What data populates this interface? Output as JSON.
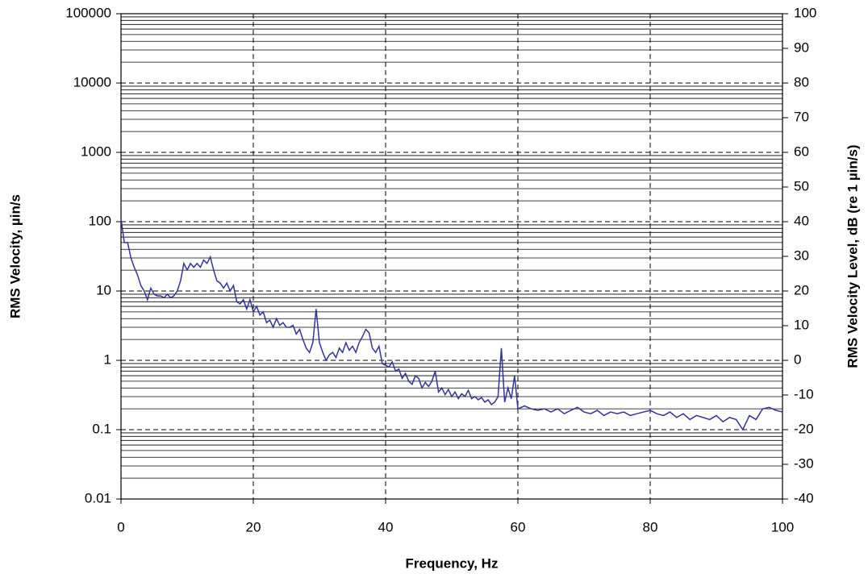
{
  "chart_data": {
    "type": "line",
    "xlabel": "Frequency, Hz",
    "ylabel": "RMS Velocity,  µin/s",
    "y2label": "RMS Velocity Level, dB (re 1   µin/s)",
    "color": "#333399",
    "ylog": true,
    "grid": true,
    "minor_grid": true,
    "xlim": [
      0,
      100
    ],
    "xticks": [
      0,
      20,
      40,
      60,
      80,
      100
    ],
    "ylim": [
      0.01,
      100000
    ],
    "yticks": [
      100000,
      10000,
      1000,
      100,
      10,
      1,
      0.1,
      0.01
    ],
    "y2lim": [
      -40,
      100
    ],
    "y2ticks": [
      100,
      90,
      80,
      70,
      60,
      50,
      40,
      30,
      20,
      10,
      0,
      -10,
      -20,
      -30,
      -40
    ],
    "x": [
      0,
      0.5,
      1,
      1.5,
      2,
      2.5,
      3,
      3.5,
      4,
      4.5,
      5,
      5.5,
      6,
      6.5,
      7,
      7.5,
      8,
      8.5,
      9,
      9.5,
      10,
      10.5,
      11,
      11.5,
      12,
      12.5,
      13,
      13.5,
      14,
      14.5,
      15,
      15.5,
      16,
      16.5,
      17,
      17.5,
      18,
      18.5,
      19,
      19.5,
      20,
      20.5,
      21,
      21.5,
      22,
      22.5,
      23,
      23.5,
      24,
      24.5,
      25,
      25.5,
      26,
      26.5,
      27,
      27.5,
      28,
      28.5,
      29,
      29.5,
      30,
      30.5,
      31,
      31.5,
      32,
      32.5,
      33,
      33.5,
      34,
      34.5,
      35,
      35.5,
      36,
      36.5,
      37,
      37.5,
      38,
      38.5,
      39,
      39.5,
      40,
      40.5,
      41,
      41.5,
      42,
      42.5,
      43,
      43.5,
      44,
      44.5,
      45,
      45.5,
      46,
      46.5,
      47,
      47.5,
      48,
      48.5,
      49,
      49.5,
      50,
      50.5,
      51,
      51.5,
      52,
      52.5,
      53,
      53.5,
      54,
      54.5,
      55,
      55.5,
      56,
      56.5,
      57,
      57.5,
      58,
      58.5,
      59,
      59.5,
      60,
      61,
      62,
      63,
      64,
      65,
      66,
      67,
      68,
      69,
      70,
      71,
      72,
      73,
      74,
      75,
      76,
      77,
      78,
      79,
      80,
      81,
      82,
      83,
      84,
      85,
      86,
      87,
      88,
      89,
      90,
      91,
      92,
      93,
      94,
      95,
      96,
      97,
      98,
      99,
      100
    ],
    "values": [
      110,
      50,
      50,
      30,
      22,
      17,
      12,
      10,
      7.5,
      11,
      9,
      8.5,
      8.5,
      8,
      9,
      8,
      8.5,
      10,
      14,
      25,
      20,
      25,
      22,
      25,
      22,
      28,
      25,
      31,
      20,
      14,
      13,
      11,
      13,
      10,
      12,
      7,
      6.5,
      7.5,
      5.5,
      7.5,
      5,
      6,
      4.5,
      5,
      3.5,
      3.8,
      3,
      4,
      3.2,
      3.5,
      3,
      3,
      3.2,
      2.4,
      2.8,
      2,
      1.5,
      1.3,
      1.8,
      5.5,
      1.8,
      1.3,
      1.0,
      1.2,
      1.3,
      1.1,
      1.5,
      1.3,
      1.8,
      1.4,
      1.6,
      1.3,
      1.8,
      2.2,
      2.8,
      2.5,
      1.5,
      1.3,
      1.6,
      0.9,
      0.85,
      0.8,
      0.95,
      0.7,
      0.75,
      0.55,
      0.65,
      0.5,
      0.45,
      0.6,
      0.55,
      0.4,
      0.48,
      0.42,
      0.5,
      0.7,
      0.35,
      0.4,
      0.32,
      0.38,
      0.3,
      0.35,
      0.28,
      0.33,
      0.3,
      0.37,
      0.28,
      0.3,
      0.27,
      0.29,
      0.25,
      0.27,
      0.23,
      0.25,
      0.3,
      1.5,
      0.25,
      0.4,
      0.28,
      0.6,
      0.2,
      0.22,
      0.2,
      0.19,
      0.2,
      0.18,
      0.2,
      0.17,
      0.19,
      0.21,
      0.18,
      0.17,
      0.19,
      0.16,
      0.18,
      0.17,
      0.18,
      0.16,
      0.17,
      0.18,
      0.19,
      0.17,
      0.16,
      0.18,
      0.15,
      0.17,
      0.14,
      0.16,
      0.15,
      0.14,
      0.16,
      0.13,
      0.15,
      0.14,
      0.1,
      0.16,
      0.14,
      0.2,
      0.21,
      0.19,
      0.18
    ]
  }
}
